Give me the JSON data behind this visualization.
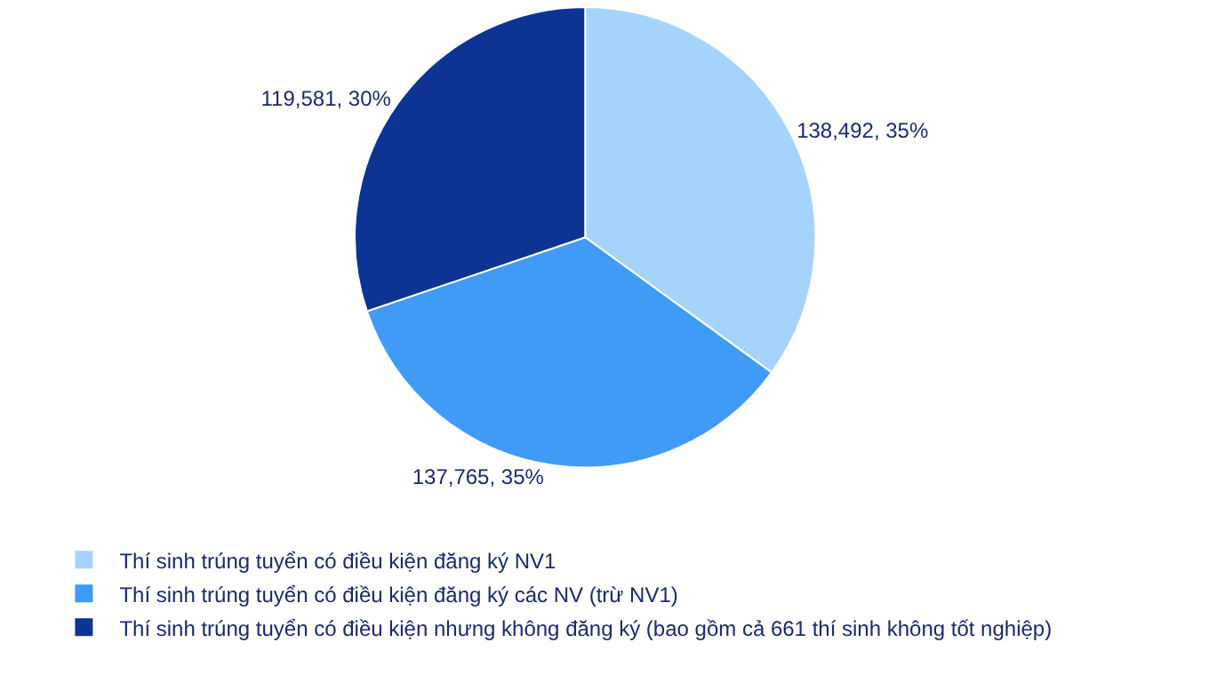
{
  "chart_data": {
    "type": "pie",
    "categories": [
      "Thí sinh trúng tuyển có điều kiện đăng ký NV1",
      "Thí sinh trúng tuyển có điều kiện đăng ký các NV (trừ NV1)",
      "Thí sinh trúng tuyển có điều kiện nhưng không đăng ký (bao gồm cả 661 thí sinh không tốt nghiệp)"
    ],
    "values": [
      138492,
      137765,
      119581
    ],
    "colors": [
      "#a6d3fb",
      "#3f9bf5",
      "#0d3494"
    ],
    "value_labels": [
      "138,492, 35%",
      "137,765, 35%",
      "119,581, 30%"
    ],
    "legend": "bottom left"
  }
}
